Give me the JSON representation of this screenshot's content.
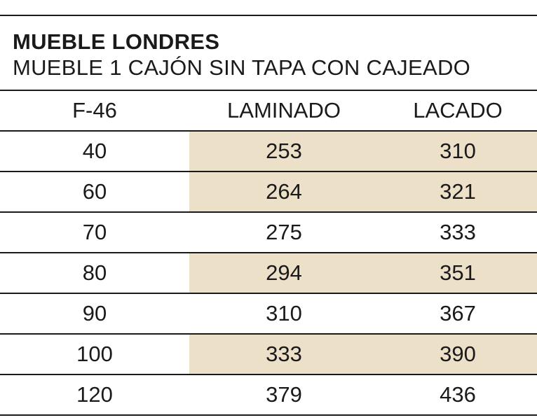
{
  "title": "MUEBLE LONDRES",
  "subtitle": "MUEBLE 1 CAJÓN SIN TAPA CON CAJEADO",
  "colors": {
    "highlight": "#ece0c9",
    "rule": "#1a1a1a"
  },
  "table": {
    "headers": [
      "F-46",
      "LAMINADO",
      "LACADO"
    ],
    "rows": [
      {
        "size": "40",
        "laminado": "253",
        "lacado": "310",
        "highlighted": true
      },
      {
        "size": "60",
        "laminado": "264",
        "lacado": "321",
        "highlighted": true
      },
      {
        "size": "70",
        "laminado": "275",
        "lacado": "333",
        "highlighted": false
      },
      {
        "size": "80",
        "laminado": "294",
        "lacado": "351",
        "highlighted": true
      },
      {
        "size": "90",
        "laminado": "310",
        "lacado": "367",
        "highlighted": false
      },
      {
        "size": "100",
        "laminado": "333",
        "lacado": "390",
        "highlighted": true
      },
      {
        "size": "120",
        "laminado": "379",
        "lacado": "436",
        "highlighted": false
      }
    ]
  }
}
